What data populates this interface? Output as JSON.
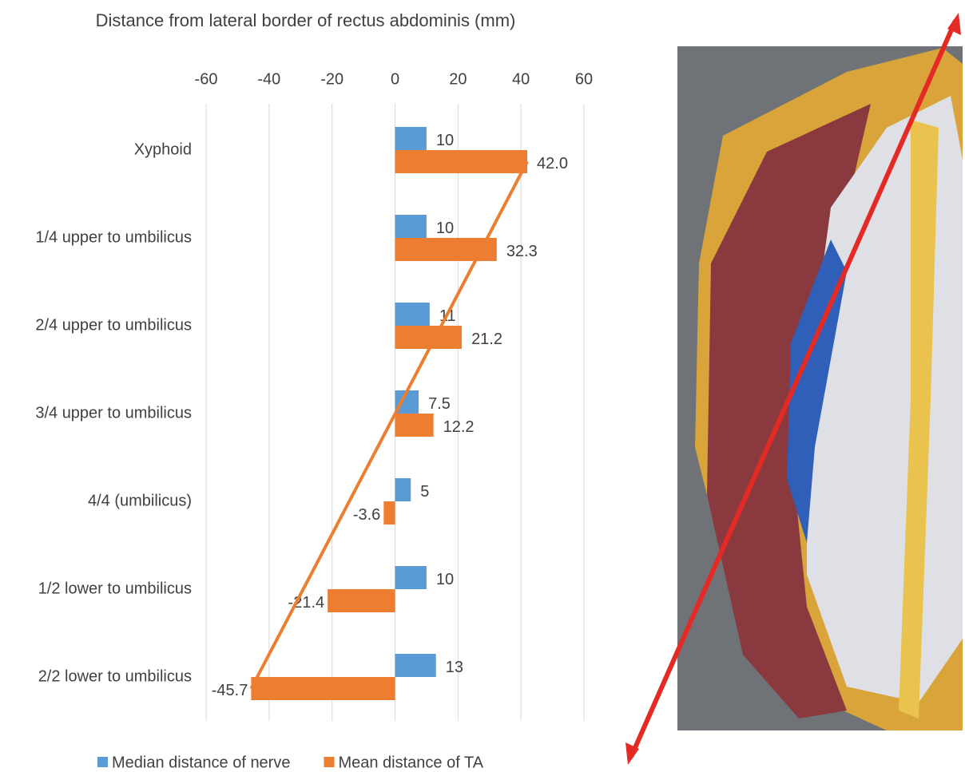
{
  "chart_data": {
    "type": "bar",
    "orientation": "horizontal",
    "title": "Distance from lateral border of rectus abdominis (mm)",
    "categories": [
      "Xyphoid",
      "1/4 upper to umbilicus",
      "2/4 upper to umbilicus",
      "3/4 upper to umbilicus",
      "4/4 (umbilicus)",
      "1/2 lower to umbilicus",
      "2/2 lower to umbilicus"
    ],
    "series": [
      {
        "name": "Median distance of nerve",
        "color": "#5b9bd5",
        "values": [
          10,
          10,
          11,
          7.5,
          5,
          10,
          13
        ]
      },
      {
        "name": "Mean distance of TA",
        "color": "#ed7d31",
        "values": [
          42.0,
          32.3,
          21.2,
          12.2,
          -3.6,
          -21.4,
          -45.7
        ],
        "value_labels": [
          "42.0",
          "32.3",
          "21.2",
          "12.2",
          "-3.6",
          "-21.4",
          "-45.7"
        ]
      }
    ],
    "xlim": [
      -60,
      60
    ],
    "xticks": [
      -60,
      -40,
      -20,
      0,
      20,
      40,
      60
    ],
    "grid": true,
    "legend": "bottom"
  }
}
